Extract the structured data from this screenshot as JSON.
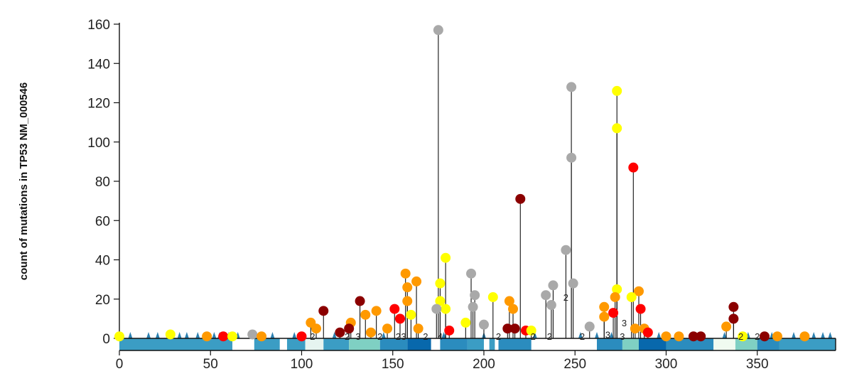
{
  "chart_data": {
    "type": "scatter",
    "title": "",
    "xlabel": "",
    "ylabel": "count of mutations in TP53 NM_000546",
    "xlim": [
      0,
      393
    ],
    "ylim": [
      0,
      160
    ],
    "x_ticks": [
      "0",
      "50",
      "100",
      "150",
      "200",
      "250",
      "300",
      "350"
    ],
    "y_ticks": [
      "0",
      "20",
      "40",
      "60",
      "80",
      "100",
      "120",
      "140",
      "160"
    ],
    "colors": {
      "truncating": "#8b0000",
      "frameshift": "#ff0000",
      "missense": "#ff9900",
      "splice": "#ffff00",
      "silent": "#a9a9a9"
    },
    "lollipops": [
      {
        "x": 175,
        "y": 157,
        "c": "#a9a9a9"
      },
      {
        "x": 248,
        "y": 128,
        "c": "#a9a9a9"
      },
      {
        "x": 273,
        "y": 126,
        "c": "#ffff00"
      },
      {
        "x": 273,
        "y": 107,
        "c": "#ffff00"
      },
      {
        "x": 248,
        "y": 92,
        "c": "#a9a9a9"
      },
      {
        "x": 282,
        "y": 87,
        "c": "#ff0000"
      },
      {
        "x": 220,
        "y": 71,
        "c": "#8b0000"
      },
      {
        "x": 245,
        "y": 45,
        "c": "#a9a9a9"
      },
      {
        "x": 179,
        "y": 41,
        "c": "#ffff00"
      },
      {
        "x": 193,
        "y": 33,
        "c": "#a9a9a9"
      },
      {
        "x": 157,
        "y": 33,
        "c": "#ff9900"
      },
      {
        "x": 163,
        "y": 29,
        "c": "#ff9900"
      },
      {
        "x": 176,
        "y": 28,
        "c": "#ffff00"
      },
      {
        "x": 249,
        "y": 28,
        "c": "#a9a9a9"
      },
      {
        "x": 238,
        "y": 27,
        "c": "#a9a9a9"
      },
      {
        "x": 158,
        "y": 26,
        "c": "#ff9900"
      },
      {
        "x": 273,
        "y": 25,
        "c": "#ffff00"
      },
      {
        "x": 285,
        "y": 24,
        "c": "#ff9900"
      },
      {
        "x": 195,
        "y": 22,
        "c": "#a9a9a9"
      },
      {
        "x": 234,
        "y": 22,
        "c": "#a9a9a9"
      },
      {
        "x": 272,
        "y": 21,
        "c": "#ff9900"
      },
      {
        "x": 205,
        "y": 21,
        "c": "#ffff00"
      },
      {
        "x": 281,
        "y": 21,
        "c": "#ffff00"
      },
      {
        "x": 132,
        "y": 19,
        "c": "#8b0000"
      },
      {
        "x": 214,
        "y": 19,
        "c": "#ff9900"
      },
      {
        "x": 158,
        "y": 19,
        "c": "#ff9900"
      },
      {
        "x": 176,
        "y": 19,
        "c": "#ffff00"
      },
      {
        "x": 237,
        "y": 17,
        "c": "#a9a9a9"
      },
      {
        "x": 266,
        "y": 16,
        "c": "#ff9900"
      },
      {
        "x": 194,
        "y": 16,
        "c": "#a9a9a9"
      },
      {
        "x": 286,
        "y": 15,
        "c": "#ff0000"
      },
      {
        "x": 151,
        "y": 15,
        "c": "#ff0000"
      },
      {
        "x": 179,
        "y": 15,
        "c": "#ffff00"
      },
      {
        "x": 216,
        "y": 15,
        "c": "#ff9900"
      },
      {
        "x": 174,
        "y": 15,
        "c": "#a9a9a9"
      },
      {
        "x": 337,
        "y": 16,
        "c": "#8b0000"
      },
      {
        "x": 112,
        "y": 14,
        "c": "#8b0000"
      },
      {
        "x": 141,
        "y": 14,
        "c": "#ff9900"
      },
      {
        "x": 271,
        "y": 13,
        "c": "#ff0000"
      },
      {
        "x": 135,
        "y": 12,
        "c": "#ff9900"
      },
      {
        "x": 266,
        "y": 11,
        "c": "#ff9900"
      },
      {
        "x": 160,
        "y": 12,
        "c": "#ffff00"
      },
      {
        "x": 337,
        "y": 10,
        "c": "#8b0000"
      },
      {
        "x": 154,
        "y": 10,
        "c": "#ff0000"
      },
      {
        "x": 105,
        "y": 8,
        "c": "#ff9900"
      },
      {
        "x": 127,
        "y": 8,
        "c": "#ff9900"
      },
      {
        "x": 190,
        "y": 8,
        "c": "#ffff00"
      },
      {
        "x": 200,
        "y": 7,
        "c": "#a9a9a9"
      },
      {
        "x": 333,
        "y": 6,
        "c": "#ff9900"
      },
      {
        "x": 213,
        "y": 5,
        "c": "#8b0000"
      },
      {
        "x": 217,
        "y": 5,
        "c": "#8b0000"
      },
      {
        "x": 126,
        "y": 5,
        "c": "#8b0000"
      },
      {
        "x": 108,
        "y": 5,
        "c": "#ff9900"
      },
      {
        "x": 147,
        "y": 5,
        "c": "#ff9900"
      },
      {
        "x": 223,
        "y": 4,
        "c": "#ff0000"
      },
      {
        "x": 283,
        "y": 5,
        "c": "#ff9900"
      },
      {
        "x": 288,
        "y": 5,
        "c": "#ff9900"
      },
      {
        "x": 164,
        "y": 5,
        "c": "#ff9900"
      },
      {
        "x": 181,
        "y": 4,
        "c": "#ff0000"
      },
      {
        "x": 258,
        "y": 6,
        "c": "#a9a9a9"
      },
      {
        "x": 290,
        "y": 3,
        "c": "#ff0000"
      },
      {
        "x": 121,
        "y": 3,
        "c": "#8b0000"
      },
      {
        "x": 138,
        "y": 3,
        "c": "#ff9900"
      },
      {
        "x": 226,
        "y": 4,
        "c": "#ffff00"
      },
      {
        "x": 28,
        "y": 2,
        "c": "#ffff00"
      },
      {
        "x": 73,
        "y": 2,
        "c": "#a9a9a9"
      },
      {
        "x": 0,
        "y": 1,
        "c": "#ffff00"
      },
      {
        "x": 48,
        "y": 1,
        "c": "#ff9900"
      },
      {
        "x": 57,
        "y": 1,
        "c": "#ff0000"
      },
      {
        "x": 62,
        "y": 1,
        "c": "#ffff00"
      },
      {
        "x": 78,
        "y": 1,
        "c": "#ff9900"
      },
      {
        "x": 100,
        "y": 1,
        "c": "#ff0000"
      },
      {
        "x": 300,
        "y": 1,
        "c": "#ff9900"
      },
      {
        "x": 307,
        "y": 1,
        "c": "#ff9900"
      },
      {
        "x": 315,
        "y": 1,
        "c": "#8b0000"
      },
      {
        "x": 319,
        "y": 1,
        "c": "#8b0000"
      },
      {
        "x": 342,
        "y": 1,
        "c": "#ffff00"
      },
      {
        "x": 354,
        "y": 1,
        "c": "#8b0000"
      },
      {
        "x": 361,
        "y": 1,
        "c": "#ff9900"
      },
      {
        "x": 376,
        "y": 1,
        "c": "#ff9900"
      }
    ],
    "stack_labels": [
      {
        "x": 106,
        "y": 1,
        "t": "2"
      },
      {
        "x": 125,
        "y": 1,
        "t": "2"
      },
      {
        "x": 131,
        "y": 1,
        "t": "3"
      },
      {
        "x": 143,
        "y": 1,
        "t": "2"
      },
      {
        "x": 153,
        "y": 1,
        "t": "2"
      },
      {
        "x": 156,
        "y": 1,
        "t": "3"
      },
      {
        "x": 168,
        "y": 1,
        "t": "2"
      },
      {
        "x": 176,
        "y": 1,
        "t": "4"
      },
      {
        "x": 208,
        "y": 1,
        "t": "2"
      },
      {
        "x": 227,
        "y": 1,
        "t": "2"
      },
      {
        "x": 236,
        "y": 1,
        "t": "2"
      },
      {
        "x": 245,
        "y": 21,
        "t": "2"
      },
      {
        "x": 254,
        "y": 1,
        "t": "2"
      },
      {
        "x": 268,
        "y": 2,
        "t": "3"
      },
      {
        "x": 276,
        "y": 1,
        "t": "3"
      },
      {
        "x": 277,
        "y": 8,
        "t": "3"
      },
      {
        "x": 341,
        "y": 1,
        "t": "2"
      },
      {
        "x": 350,
        "y": 1,
        "t": "2"
      }
    ],
    "domains": [
      {
        "start": 0,
        "end": 62,
        "color": "#3b9dc4"
      },
      {
        "start": 74,
        "end": 88,
        "color": "#3b9dc4"
      },
      {
        "start": 92,
        "end": 102,
        "color": "#3b9dc4"
      },
      {
        "start": 102,
        "end": 112,
        "color": "#e6f4f0"
      },
      {
        "start": 112,
        "end": 126,
        "color": "#3b9dc4"
      },
      {
        "start": 126,
        "end": 143,
        "color": "#7fd0c3"
      },
      {
        "start": 143,
        "end": 158,
        "color": "#2b8cbe"
      },
      {
        "start": 158,
        "end": 171,
        "color": "#0868ac"
      },
      {
        "start": 176,
        "end": 191,
        "color": "#2b8cbe"
      },
      {
        "start": 191,
        "end": 200,
        "color": "#3b9dc4"
      },
      {
        "start": 203,
        "end": 206,
        "color": "#3b9dc4"
      },
      {
        "start": 208,
        "end": 226,
        "color": "#2b8cbe"
      },
      {
        "start": 262,
        "end": 276,
        "color": "#2b8cbe"
      },
      {
        "start": 276,
        "end": 285,
        "color": "#7fd0c3"
      },
      {
        "start": 285,
        "end": 300,
        "color": "#0868ac"
      },
      {
        "start": 300,
        "end": 326,
        "color": "#2b8cbe"
      },
      {
        "start": 326,
        "end": 338,
        "color": "#f0fbf0"
      },
      {
        "start": 338,
        "end": 350,
        "color": "#7fd0c3"
      },
      {
        "start": 350,
        "end": 362,
        "color": "#2b8cbe"
      },
      {
        "start": 362,
        "end": 393,
        "color": "#3b9dc4"
      }
    ],
    "markers": [
      6,
      16,
      21,
      33,
      37,
      43,
      52,
      55,
      60,
      65,
      72,
      84,
      96,
      118,
      145,
      178,
      200,
      228,
      253,
      262,
      270,
      296,
      315,
      332,
      345,
      358,
      370,
      381,
      386,
      390
    ]
  }
}
